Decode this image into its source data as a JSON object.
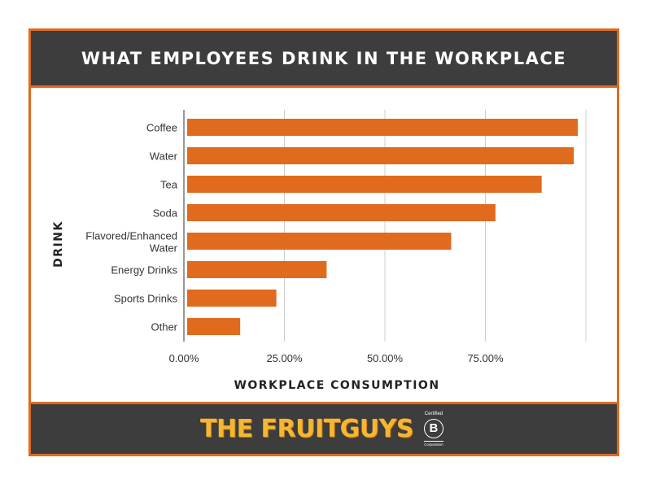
{
  "header": {
    "title": "WHAT EMPLOYEES DRINK IN THE WORKPLACE"
  },
  "footer": {
    "logo_text": "THE FRUITGUYS",
    "bcorp_certified": "Certified",
    "bcorp_letter": "B",
    "bcorp_corporation": "Corporation"
  },
  "colors": {
    "accent": "#e06a1e",
    "dark": "#3d3d3d",
    "logo": "#f5b731"
  },
  "chart_data": {
    "type": "bar",
    "orientation": "horizontal",
    "title": "WHAT EMPLOYEES DRINK IN THE WORKPLACE",
    "xlabel": "WORKPLACE CONSUMPTION",
    "ylabel": "DRINK",
    "categories": [
      "Coffee",
      "Water",
      "Tea",
      "Soda",
      "Flavored/Enhanced Water",
      "Energy Drinks",
      "Sports Drinks",
      "Other"
    ],
    "values": [
      98,
      97,
      89,
      77.5,
      66.5,
      35.5,
      23,
      14
    ],
    "xlim": [
      0,
      100
    ],
    "xticks": [
      0,
      25,
      50,
      75,
      100
    ],
    "xtick_labels": [
      "0.00%",
      "25.00%",
      "50.00%",
      "75.00%",
      ""
    ],
    "grid": true,
    "bar_color": "#e06a1e"
  }
}
